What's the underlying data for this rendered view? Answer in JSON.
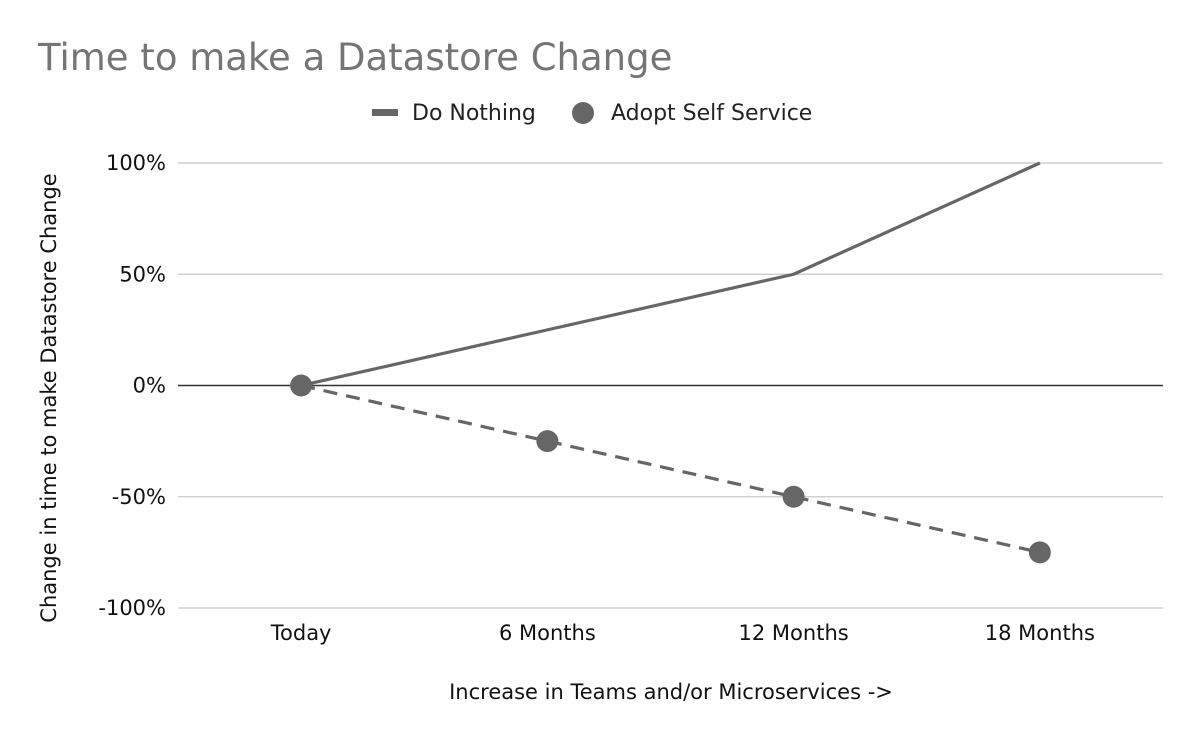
{
  "chart_data": {
    "type": "line",
    "title": "Time to make a Datastore Change",
    "xlabel": "Increase in Teams and/or Microservices ->",
    "ylabel": "Change in time to make Datastore Change",
    "categories": [
      "Today",
      "6 Months",
      "12 Months",
      "18 Months"
    ],
    "ylim": [
      -100,
      100
    ],
    "yticks": [
      100,
      50,
      0,
      -50,
      -100
    ],
    "ytick_labels": [
      "100%",
      "50%",
      "0%",
      "-50%",
      "-100%"
    ],
    "grid": true,
    "legend_position": "top",
    "series": [
      {
        "name": "Do Nothing",
        "values": [
          0,
          25,
          50,
          100
        ],
        "line_style": "solid",
        "marker": "none",
        "color": "#666666"
      },
      {
        "name": "Adopt Self Service",
        "values": [
          0,
          -25,
          -50,
          -75
        ],
        "line_style": "dashed",
        "marker": "circle",
        "color": "#666666"
      }
    ]
  }
}
